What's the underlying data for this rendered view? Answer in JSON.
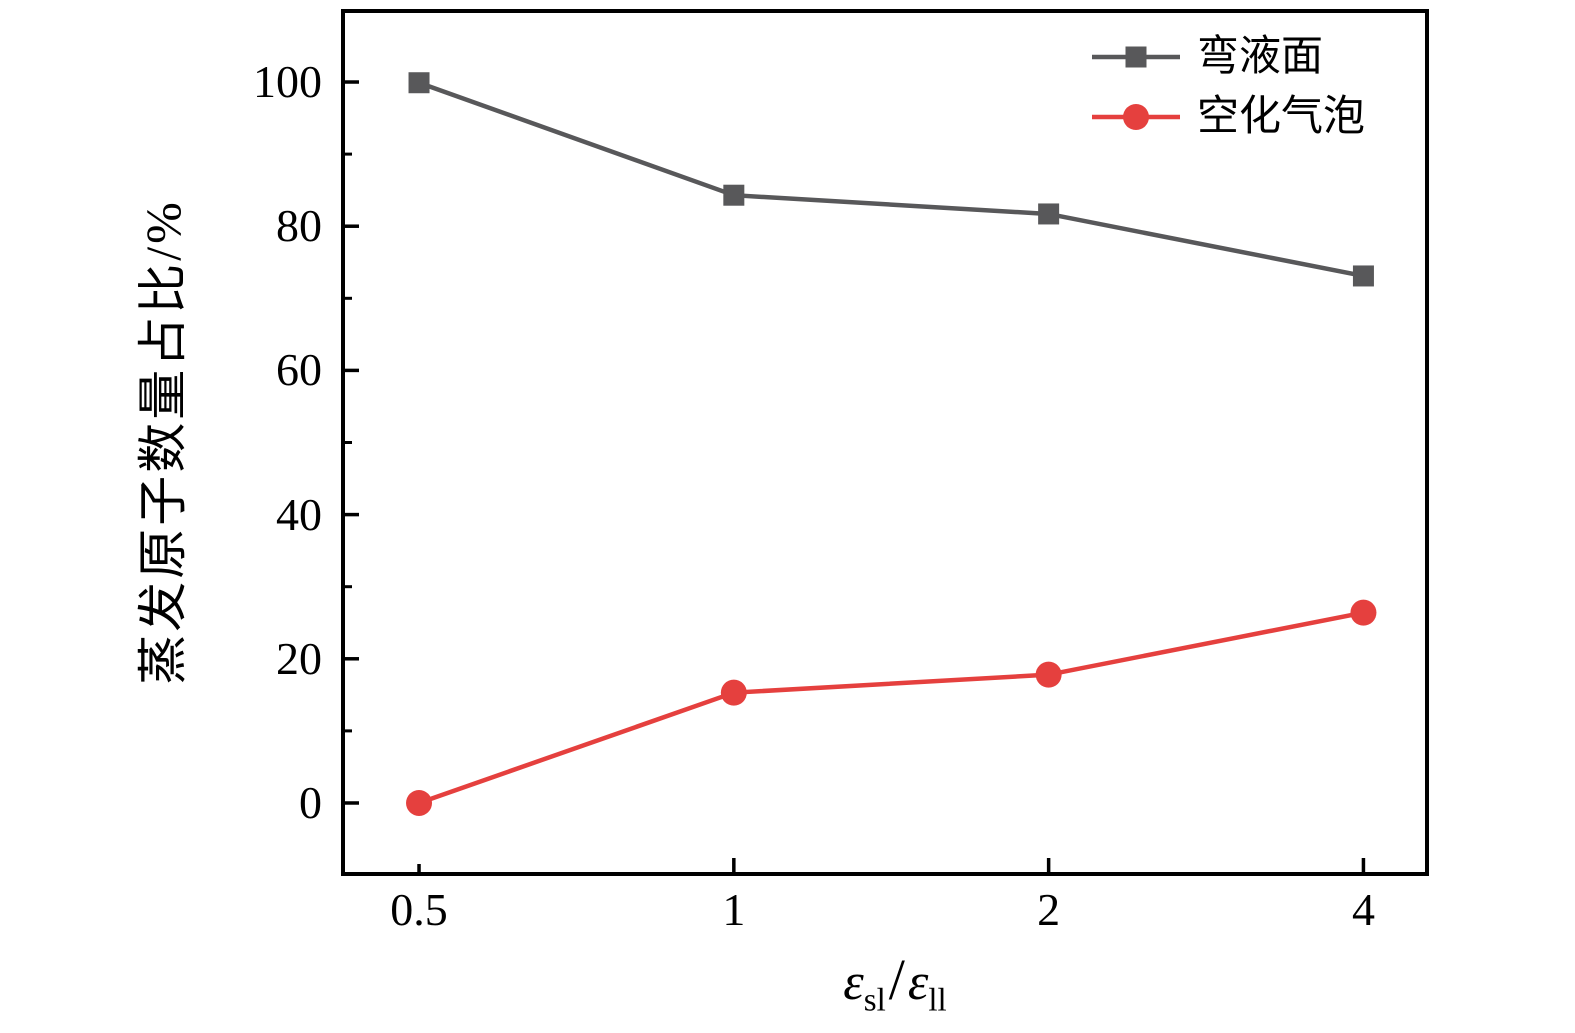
{
  "figure": {
    "background": "#ffffff",
    "axis_color": "#000000"
  },
  "chart_data": {
    "type": "line",
    "title": "",
    "xlabel": "εsl/εll",
    "xlabel_parts": {
      "numerator_symbol": "ε",
      "numerator_subscript": "sl",
      "slash": "/",
      "denominator_symbol": "ε",
      "denominator_subscript": "ll"
    },
    "ylabel": "蒸发原子数量占比/%",
    "x": [
      0.5,
      1,
      2,
      4
    ],
    "x_tick_labels": [
      "0.5",
      "1",
      "2",
      "4"
    ],
    "x_scale": "log2",
    "xlim_log2": [
      -1.2415,
      2.2019
    ],
    "y_ticks": [
      0,
      20,
      40,
      60,
      80,
      100
    ],
    "y_minor_ticks": [
      10,
      30,
      50,
      70,
      90
    ],
    "ylim": [
      -9.85,
      109.85
    ],
    "grid": false,
    "legend_position": "top-right-inside",
    "series": [
      {
        "name": "弯液面",
        "marker": "square",
        "color": "#58585a",
        "values": [
          99.9,
          84.3,
          81.7,
          73.1
        ]
      },
      {
        "name": "空化气泡",
        "marker": "circle",
        "color": "#e5403e",
        "values": [
          0.0,
          15.3,
          17.8,
          26.4
        ]
      }
    ]
  }
}
